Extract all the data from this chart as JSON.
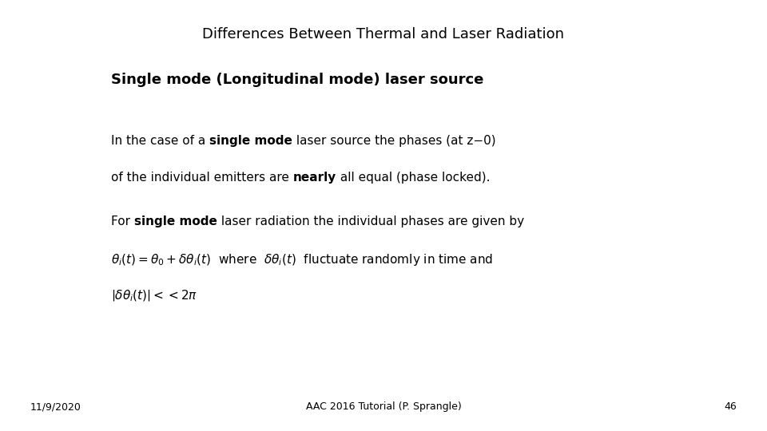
{
  "title": "Differences Between Thermal and Laser Radiation",
  "title_fontsize": 13,
  "subtitle": "Single mode (Longitudinal mode) laser source",
  "subtitle_fontsize": 13,
  "body_fontsize": 11,
  "footer_fontsize": 9,
  "footer_date": "11/9/2020",
  "footer_center": "AAC 2016 Tutorial (P. Sprangle)",
  "footer_page": "46",
  "bg_color": "#ffffff",
  "text_color": "#000000"
}
